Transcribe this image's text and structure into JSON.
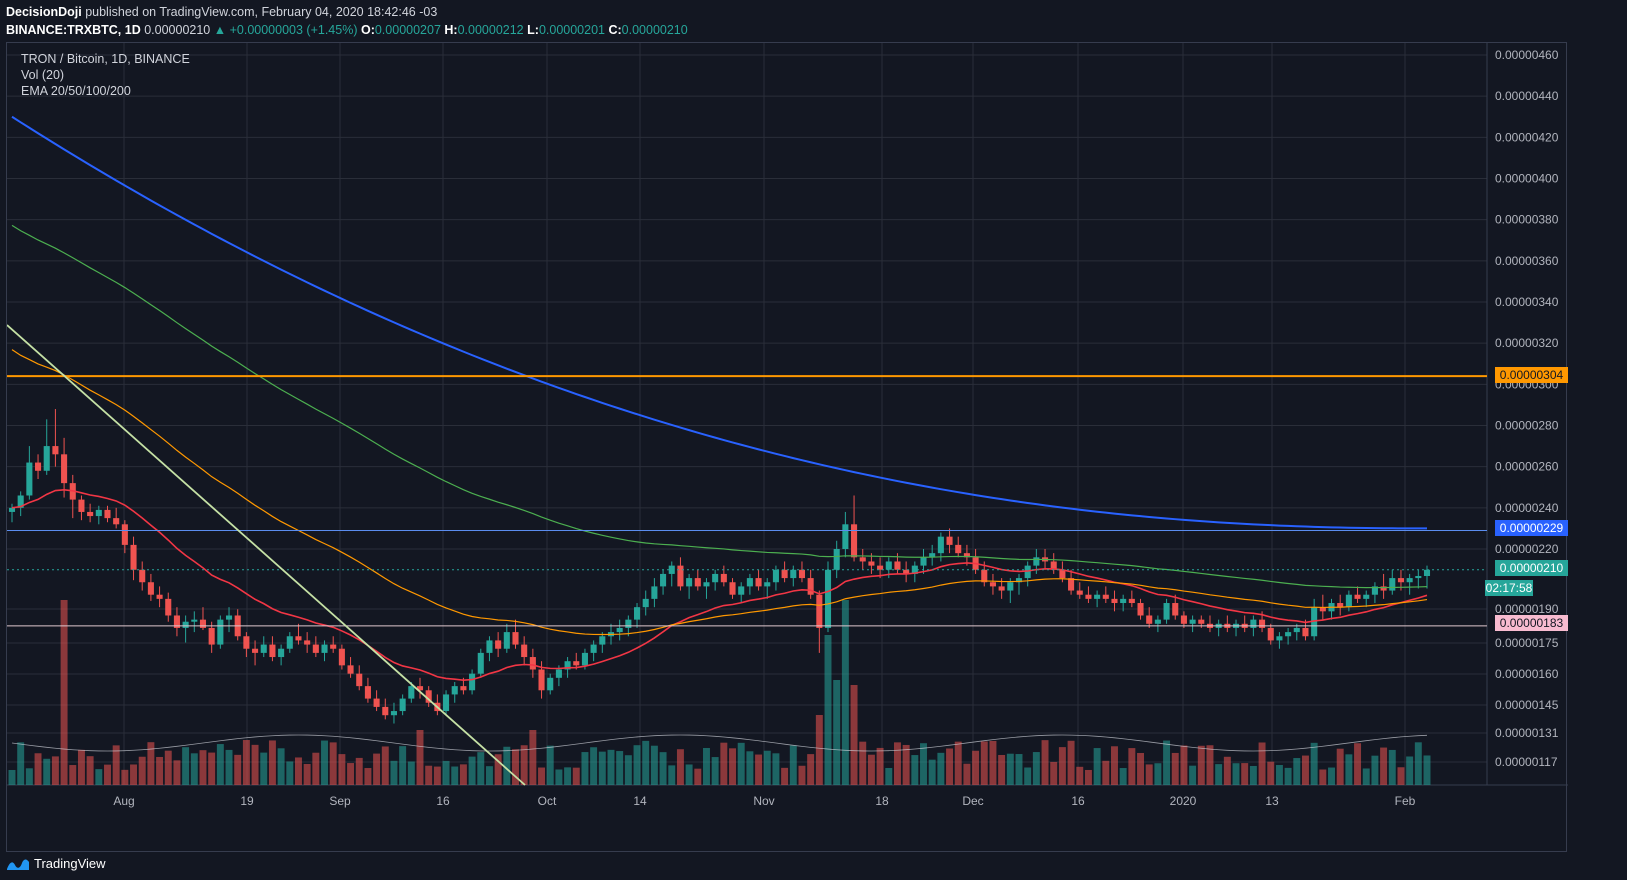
{
  "header": {
    "publisher": "DecisionDoji",
    "published_text": "published on TradingView.com, February 04, 2020 18:42:46 -03",
    "symbol": "BINANCE:TRXBTC, 1D",
    "last": "0.00000210",
    "change": "▲ +0.00000003 (+1.45%)",
    "o_label": "O:",
    "o_value": "0.00000207",
    "h_label": "H:",
    "h_value": "0.00000212",
    "l_label": "L:",
    "l_value": "0.00000201",
    "c_label": "C:",
    "c_value": "0.00000210"
  },
  "legend": {
    "title": "TRON / Bitcoin, 1D, BINANCE",
    "vol": "Vol (20)",
    "ema": "EMA 20/50/100/200"
  },
  "footer": {
    "brand": "TradingView"
  },
  "colors": {
    "up": "#26a69a",
    "down": "#ef5350",
    "ema20": "#f23645",
    "ema50": "#ff9800",
    "ema100": "#4caf50",
    "ema200": "#2962ff",
    "hline": "#ff9800",
    "trendline": "#c5e1a5"
  },
  "chart_data": {
    "type": "candlestick",
    "y_axis_ticks": [
      "0.00000460",
      "0.00000440",
      "0.00000420",
      "0.00000400",
      "0.00000380",
      "0.00000360",
      "0.00000340",
      "0.00000320",
      "0.00000300",
      "0.00000280",
      "0.00000260",
      "0.00000240",
      "0.00000220",
      "0.00000190",
      "0.00000175",
      "0.00000160",
      "0.00000145",
      "0.00000131",
      "0.00000117"
    ],
    "x_axis_labels": [
      "Aug",
      "19",
      "Sep",
      "16",
      "Oct",
      "14",
      "Nov",
      "18",
      "Dec",
      "16",
      "2020",
      "13",
      "Feb"
    ],
    "price_labels": {
      "resistance": "0.00000304",
      "ema200": "0.00000229",
      "last": "0.00000210",
      "countdown": "02:17:58",
      "support": "0.00000183"
    },
    "horizontal_lines": [
      {
        "price": 3.04e-06,
        "color": "#ff9800"
      },
      {
        "price": 2.29e-06,
        "color": "#5b8def"
      },
      {
        "price": 1.83e-06,
        "color": "#e0c8cf"
      }
    ],
    "ohlc_approx": [
      [
        2.38,
        2.42,
        2.33,
        2.4
      ],
      [
        2.4,
        2.48,
        2.36,
        2.46
      ],
      [
        2.46,
        2.7,
        2.44,
        2.62
      ],
      [
        2.62,
        2.66,
        2.54,
        2.58
      ],
      [
        2.58,
        2.83,
        2.56,
        2.7
      ],
      [
        2.7,
        2.88,
        2.6,
        2.66
      ],
      [
        2.66,
        2.74,
        2.45,
        2.52
      ],
      [
        2.52,
        2.56,
        2.35,
        2.44
      ],
      [
        2.44,
        2.46,
        2.34,
        2.38
      ],
      [
        2.38,
        2.42,
        2.33,
        2.36
      ],
      [
        2.36,
        2.41,
        2.32,
        2.39
      ],
      [
        2.39,
        2.41,
        2.33,
        2.35
      ],
      [
        2.35,
        2.4,
        2.3,
        2.32
      ],
      [
        2.32,
        2.34,
        2.18,
        2.22
      ],
      [
        2.22,
        2.26,
        2.05,
        2.1
      ],
      [
        2.1,
        2.14,
        2.0,
        2.04
      ],
      [
        2.04,
        2.08,
        1.95,
        1.98
      ],
      [
        1.98,
        2.02,
        1.92,
        1.96
      ],
      [
        1.96,
        1.99,
        1.85,
        1.88
      ],
      [
        1.88,
        1.92,
        1.78,
        1.82
      ],
      [
        1.82,
        1.88,
        1.75,
        1.85
      ],
      [
        1.85,
        1.9,
        1.8,
        1.86
      ],
      [
        1.86,
        1.92,
        1.81,
        1.82
      ],
      [
        1.82,
        1.85,
        1.7,
        1.74
      ],
      [
        1.74,
        1.88,
        1.72,
        1.86
      ],
      [
        1.86,
        1.92,
        1.8,
        1.88
      ],
      [
        1.88,
        1.91,
        1.76,
        1.78
      ],
      [
        1.78,
        1.8,
        1.68,
        1.72
      ],
      [
        1.72,
        1.76,
        1.64,
        1.7
      ],
      [
        1.7,
        1.78,
        1.68,
        1.74
      ],
      [
        1.74,
        1.78,
        1.66,
        1.68
      ],
      [
        1.68,
        1.74,
        1.64,
        1.72
      ],
      [
        1.72,
        1.8,
        1.7,
        1.78
      ],
      [
        1.78,
        1.84,
        1.74,
        1.76
      ],
      [
        1.76,
        1.8,
        1.7,
        1.74
      ],
      [
        1.74,
        1.78,
        1.68,
        1.7
      ],
      [
        1.7,
        1.76,
        1.66,
        1.74
      ],
      [
        1.74,
        1.78,
        1.7,
        1.72
      ],
      [
        1.72,
        1.74,
        1.62,
        1.64
      ],
      [
        1.64,
        1.68,
        1.58,
        1.6
      ],
      [
        1.6,
        1.64,
        1.52,
        1.54
      ],
      [
        1.54,
        1.58,
        1.46,
        1.48
      ],
      [
        1.48,
        1.52,
        1.42,
        1.44
      ],
      [
        1.44,
        1.48,
        1.38,
        1.4
      ],
      [
        1.4,
        1.46,
        1.36,
        1.42
      ],
      [
        1.42,
        1.5,
        1.4,
        1.48
      ],
      [
        1.48,
        1.56,
        1.46,
        1.54
      ],
      [
        1.54,
        1.58,
        1.48,
        1.52
      ],
      [
        1.52,
        1.54,
        1.44,
        1.46
      ],
      [
        1.46,
        1.5,
        1.4,
        1.42
      ],
      [
        1.42,
        1.52,
        1.4,
        1.5
      ],
      [
        1.5,
        1.56,
        1.46,
        1.54
      ],
      [
        1.54,
        1.58,
        1.5,
        1.52
      ],
      [
        1.52,
        1.62,
        1.5,
        1.6
      ],
      [
        1.6,
        1.72,
        1.58,
        1.7
      ],
      [
        1.7,
        1.78,
        1.66,
        1.76
      ],
      [
        1.76,
        1.8,
        1.68,
        1.72
      ],
      [
        1.72,
        1.84,
        1.7,
        1.8
      ],
      [
        1.8,
        1.86,
        1.72,
        1.74
      ],
      [
        1.74,
        1.78,
        1.64,
        1.68
      ],
      [
        1.68,
        1.72,
        1.58,
        1.62
      ],
      [
        1.62,
        1.66,
        1.48,
        1.52
      ],
      [
        1.52,
        1.6,
        1.5,
        1.58
      ],
      [
        1.58,
        1.64,
        1.54,
        1.62
      ],
      [
        1.62,
        1.68,
        1.58,
        1.66
      ],
      [
        1.66,
        1.7,
        1.62,
        1.64
      ],
      [
        1.64,
        1.72,
        1.62,
        1.7
      ],
      [
        1.7,
        1.76,
        1.66,
        1.74
      ],
      [
        1.74,
        1.8,
        1.7,
        1.78
      ],
      [
        1.78,
        1.84,
        1.74,
        1.8
      ],
      [
        1.8,
        1.86,
        1.76,
        1.82
      ],
      [
        1.82,
        1.88,
        1.78,
        1.86
      ],
      [
        1.86,
        1.94,
        1.82,
        1.92
      ],
      [
        1.92,
        2.0,
        1.88,
        1.96
      ],
      [
        1.96,
        2.06,
        1.92,
        2.02
      ],
      [
        2.02,
        2.1,
        1.98,
        2.08
      ],
      [
        2.08,
        2.14,
        2.02,
        2.12
      ],
      [
        2.12,
        2.16,
        2.0,
        2.02
      ],
      [
        2.02,
        2.08,
        1.96,
        2.06
      ],
      [
        2.06,
        2.1,
        2.0,
        2.02
      ],
      [
        2.02,
        2.06,
        1.96,
        2.04
      ],
      [
        2.04,
        2.1,
        2.0,
        2.08
      ],
      [
        2.08,
        2.12,
        2.02,
        2.04
      ],
      [
        2.04,
        2.06,
        1.96,
        1.98
      ],
      [
        1.98,
        2.04,
        1.94,
        2.02
      ],
      [
        2.02,
        2.08,
        1.98,
        2.06
      ],
      [
        2.06,
        2.1,
        2.0,
        2.02
      ],
      [
        2.02,
        2.06,
        1.96,
        2.04
      ],
      [
        2.04,
        2.12,
        2.0,
        2.1
      ],
      [
        2.1,
        2.14,
        2.04,
        2.06
      ],
      [
        2.06,
        2.12,
        2.02,
        2.1
      ],
      [
        2.1,
        2.14,
        2.04,
        2.06
      ],
      [
        2.06,
        2.1,
        1.96,
        1.98
      ],
      [
        1.98,
        2.0,
        1.7,
        1.82
      ],
      [
        1.82,
        2.14,
        1.8,
        2.1
      ],
      [
        2.1,
        2.24,
        2.06,
        2.2
      ],
      [
        2.2,
        2.38,
        2.16,
        2.32
      ],
      [
        2.32,
        2.46,
        2.14,
        2.16
      ],
      [
        2.16,
        2.2,
        2.1,
        2.14
      ],
      [
        2.14,
        2.18,
        2.08,
        2.12
      ],
      [
        2.12,
        2.16,
        2.06,
        2.1
      ],
      [
        2.1,
        2.16,
        2.06,
        2.14
      ],
      [
        2.14,
        2.18,
        2.08,
        2.1
      ],
      [
        2.1,
        2.14,
        2.04,
        2.08
      ],
      [
        2.08,
        2.14,
        2.04,
        2.12
      ],
      [
        2.12,
        2.2,
        2.08,
        2.16
      ],
      [
        2.16,
        2.22,
        2.12,
        2.18
      ],
      [
        2.18,
        2.28,
        2.14,
        2.26
      ],
      [
        2.26,
        2.3,
        2.18,
        2.22
      ],
      [
        2.22,
        2.26,
        2.16,
        2.18
      ],
      [
        2.18,
        2.22,
        2.12,
        2.16
      ],
      [
        2.16,
        2.2,
        2.08,
        2.1
      ],
      [
        2.1,
        2.14,
        2.02,
        2.04
      ],
      [
        2.04,
        2.08,
        1.98,
        2.02
      ],
      [
        2.02,
        2.06,
        1.96,
        2.0
      ],
      [
        2.0,
        2.06,
        1.94,
        2.04
      ],
      [
        2.04,
        2.08,
        1.98,
        2.06
      ],
      [
        2.06,
        2.14,
        2.02,
        2.12
      ],
      [
        2.12,
        2.2,
        2.08,
        2.16
      ],
      [
        2.16,
        2.2,
        2.1,
        2.14
      ],
      [
        2.14,
        2.18,
        2.08,
        2.1
      ],
      [
        2.1,
        2.14,
        2.04,
        2.06
      ],
      [
        2.06,
        2.1,
        1.98,
        2.0
      ],
      [
        2.0,
        2.04,
        1.96,
        1.98
      ],
      [
        1.98,
        2.02,
        1.94,
        1.96
      ],
      [
        1.96,
        2.0,
        1.92,
        1.98
      ],
      [
        1.98,
        2.02,
        1.94,
        1.96
      ],
      [
        1.96,
        2.0,
        1.9,
        1.94
      ],
      [
        1.94,
        1.98,
        1.9,
        1.96
      ],
      [
        1.96,
        2.0,
        1.92,
        1.94
      ],
      [
        1.94,
        1.96,
        1.86,
        1.88
      ],
      [
        1.88,
        1.92,
        1.82,
        1.84
      ],
      [
        1.84,
        1.88,
        1.8,
        1.86
      ],
      [
        1.86,
        1.96,
        1.84,
        1.94
      ],
      [
        1.94,
        1.98,
        1.86,
        1.88
      ],
      [
        1.88,
        1.9,
        1.82,
        1.84
      ],
      [
        1.84,
        1.88,
        1.8,
        1.86
      ],
      [
        1.86,
        1.88,
        1.82,
        1.84
      ],
      [
        1.84,
        1.88,
        1.8,
        1.82
      ],
      [
        1.82,
        1.86,
        1.78,
        1.84
      ],
      [
        1.84,
        1.88,
        1.8,
        1.82
      ],
      [
        1.82,
        1.86,
        1.78,
        1.84
      ],
      [
        1.84,
        1.88,
        1.8,
        1.82
      ],
      [
        1.82,
        1.88,
        1.78,
        1.86
      ],
      [
        1.86,
        1.9,
        1.8,
        1.82
      ],
      [
        1.82,
        1.84,
        1.74,
        1.76
      ],
      [
        1.76,
        1.8,
        1.72,
        1.78
      ],
      [
        1.78,
        1.82,
        1.74,
        1.8
      ],
      [
        1.8,
        1.84,
        1.76,
        1.82
      ],
      [
        1.82,
        1.86,
        1.76,
        1.78
      ],
      [
        1.78,
        1.96,
        1.76,
        1.92
      ],
      [
        1.92,
        1.98,
        1.86,
        1.9
      ],
      [
        1.9,
        1.96,
        1.86,
        1.94
      ],
      [
        1.94,
        1.98,
        1.88,
        1.92
      ],
      [
        1.92,
        2.0,
        1.9,
        1.98
      ],
      [
        1.98,
        2.02,
        1.94,
        1.96
      ],
      [
        1.96,
        2.0,
        1.92,
        1.98
      ],
      [
        1.98,
        2.04,
        1.94,
        2.02
      ],
      [
        2.02,
        2.08,
        1.96,
        2.0
      ],
      [
        2.0,
        2.1,
        1.98,
        2.06
      ],
      [
        2.06,
        2.1,
        2.0,
        2.04
      ],
      [
        2.04,
        2.08,
        1.98,
        2.06
      ],
      [
        2.06,
        2.1,
        2.01,
        2.07
      ],
      [
        2.07,
        2.12,
        2.01,
        2.1
      ]
    ]
  }
}
